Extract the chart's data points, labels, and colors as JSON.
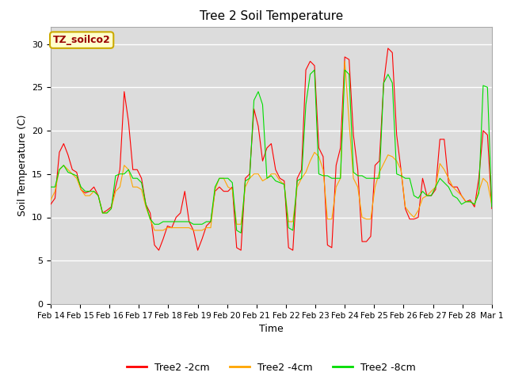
{
  "title": "Tree 2 Soil Temperature",
  "xlabel": "Time",
  "ylabel": "Soil Temperature (C)",
  "ylim": [
    0,
    32
  ],
  "yticks": [
    0,
    5,
    10,
    15,
    20,
    25,
    30
  ],
  "bg_color": "#DCDCDC",
  "fig_color": "#FFFFFF",
  "annotation_text": "TZ_soilco2",
  "annotation_bg": "#FFFFCC",
  "annotation_border": "#CCAA00",
  "annotation_text_color": "#990000",
  "line_colors": {
    "2cm": "#FF0000",
    "4cm": "#FFA500",
    "8cm": "#00DD00"
  },
  "legend_labels": [
    "Tree2 -2cm",
    "Tree2 -4cm",
    "Tree2 -8cm"
  ],
  "tick_dates": [
    "Feb 14",
    "Feb 15",
    "Feb 16",
    "Feb 17",
    "Feb 18",
    "Feb 19",
    "Feb 20",
    "Feb 21",
    "Feb 22",
    "Feb 23",
    "Feb 24",
    "Feb 25",
    "Feb 26",
    "Feb 27",
    "Feb 28",
    "Mar 1"
  ],
  "red_data": [
    11.5,
    12.2,
    17.5,
    18.5,
    17.2,
    15.5,
    15.2,
    13.2,
    12.8,
    13.0,
    13.5,
    12.5,
    10.5,
    10.8,
    11.2,
    13.5,
    15.5,
    24.5,
    21.0,
    15.5,
    15.5,
    14.5,
    11.5,
    10.5,
    6.8,
    6.2,
    7.5,
    9.0,
    8.8,
    10.0,
    10.5,
    13.0,
    9.5,
    8.5,
    6.2,
    7.5,
    9.0,
    9.5,
    13.0,
    13.5,
    13.0,
    13.0,
    13.5,
    6.5,
    6.2,
    14.5,
    15.0,
    22.5,
    20.5,
    16.5,
    18.0,
    18.5,
    15.5,
    14.5,
    14.2,
    6.5,
    6.2,
    14.5,
    15.5,
    27.0,
    28.0,
    27.5,
    18.0,
    17.0,
    6.8,
    6.5,
    16.0,
    18.0,
    28.5,
    28.2,
    19.5,
    15.5,
    7.2,
    7.2,
    7.8,
    16.0,
    16.5,
    25.5,
    29.5,
    29.0,
    19.5,
    15.5,
    11.0,
    9.8,
    9.8,
    10.0,
    14.5,
    12.5,
    12.5,
    13.2,
    19.0,
    19.0,
    14.0,
    13.5,
    13.5,
    12.5,
    11.8,
    12.0,
    11.2,
    14.5,
    20.0,
    19.5,
    11.0
  ],
  "orange_data": [
    12.0,
    13.0,
    15.5,
    16.0,
    15.5,
    15.0,
    14.5,
    13.2,
    12.5,
    12.5,
    13.0,
    12.5,
    10.5,
    10.5,
    11.0,
    13.0,
    13.5,
    16.0,
    15.5,
    13.5,
    13.5,
    13.2,
    11.2,
    9.8,
    8.5,
    8.5,
    8.5,
    8.8,
    8.8,
    8.8,
    8.8,
    8.8,
    8.8,
    8.5,
    8.5,
    8.5,
    8.8,
    8.8,
    13.2,
    14.5,
    14.5,
    13.5,
    13.2,
    9.2,
    9.2,
    13.5,
    14.5,
    15.0,
    15.0,
    14.2,
    14.5,
    15.0,
    15.0,
    14.2,
    13.8,
    9.5,
    9.5,
    13.5,
    14.5,
    15.2,
    16.5,
    17.5,
    17.0,
    15.5,
    9.8,
    9.8,
    13.5,
    14.5,
    28.0,
    21.0,
    14.5,
    13.5,
    10.0,
    9.8,
    9.8,
    13.5,
    15.2,
    16.2,
    17.2,
    17.0,
    16.5,
    15.5,
    11.2,
    10.5,
    10.0,
    10.8,
    12.2,
    12.5,
    13.0,
    13.5,
    16.2,
    15.5,
    14.5,
    13.5,
    13.0,
    12.5,
    11.8,
    11.8,
    11.5,
    13.0,
    14.5,
    14.0,
    11.5
  ],
  "green_data": [
    13.5,
    13.5,
    15.5,
    16.0,
    15.2,
    15.0,
    14.8,
    13.5,
    13.0,
    13.0,
    13.0,
    12.5,
    10.5,
    10.5,
    11.0,
    14.8,
    15.0,
    15.0,
    15.5,
    14.5,
    14.5,
    14.0,
    11.5,
    9.8,
    9.2,
    9.2,
    9.5,
    9.5,
    9.5,
    9.5,
    9.5,
    9.5,
    9.5,
    9.2,
    9.2,
    9.2,
    9.5,
    9.5,
    13.5,
    14.5,
    14.5,
    14.5,
    14.0,
    8.5,
    8.2,
    14.2,
    14.5,
    23.5,
    24.5,
    23.0,
    14.5,
    14.8,
    14.2,
    14.0,
    13.8,
    8.8,
    8.5,
    14.2,
    14.5,
    23.0,
    26.5,
    27.0,
    15.0,
    14.8,
    14.8,
    14.5,
    14.5,
    14.5,
    27.0,
    26.5,
    15.2,
    14.8,
    14.8,
    14.5,
    14.5,
    14.5,
    14.5,
    25.5,
    26.5,
    25.5,
    15.0,
    14.8,
    14.5,
    14.5,
    12.5,
    12.2,
    13.0,
    12.5,
    12.5,
    13.5,
    14.5,
    14.0,
    13.5,
    12.5,
    12.2,
    11.5,
    11.8,
    11.8,
    11.5,
    12.8,
    25.2,
    25.0,
    11.2
  ]
}
